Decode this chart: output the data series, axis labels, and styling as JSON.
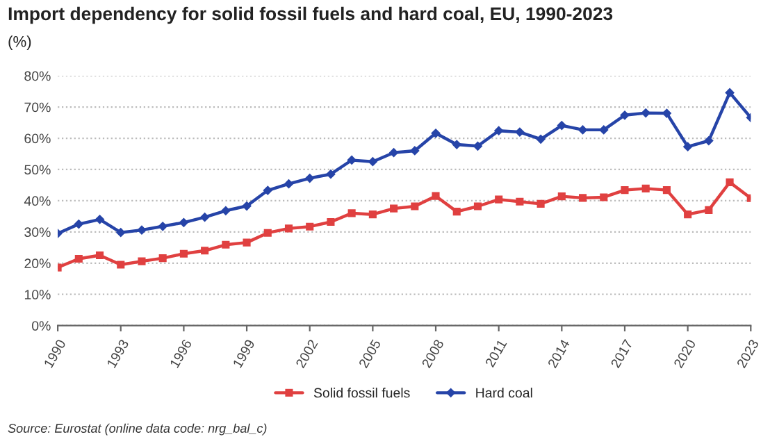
{
  "chart_data": {
    "type": "line",
    "title": "Import dependency for solid fossil fuels and hard coal, EU, 1990-2023",
    "subtitle": "(%)",
    "x": [
      1990,
      1991,
      1992,
      1993,
      1994,
      1995,
      1996,
      1997,
      1998,
      1999,
      2000,
      2001,
      2002,
      2003,
      2004,
      2005,
      2006,
      2007,
      2008,
      2009,
      2010,
      2011,
      2012,
      2013,
      2014,
      2015,
      2016,
      2017,
      2018,
      2019,
      2020,
      2021,
      2022,
      2023
    ],
    "series": [
      {
        "name": "Solid fossil fuels",
        "color": "#e04040",
        "marker": "square",
        "values": [
          18.6,
          21.4,
          22.5,
          19.5,
          20.6,
          21.6,
          23,
          24,
          25.9,
          26.6,
          29.7,
          31.1,
          31.7,
          33.2,
          36,
          35.6,
          37.5,
          38.2,
          41.5,
          36.5,
          38.2,
          40.4,
          39.7,
          39,
          41.4,
          40.9,
          41.1,
          43.4,
          43.9,
          43.4,
          35.6,
          37,
          45.9,
          40.8
        ]
      },
      {
        "name": "Hard coal",
        "color": "#2644a8",
        "marker": "diamond",
        "values": [
          29.5,
          32.5,
          34,
          29.8,
          30.6,
          31.8,
          33,
          34.7,
          36.8,
          38.3,
          43.3,
          45.4,
          47.2,
          48.5,
          53,
          52.5,
          55.4,
          56,
          61.6,
          58,
          57.5,
          62.4,
          62,
          59.7,
          64.1,
          62.7,
          62.7,
          67.4,
          68.1,
          68,
          57.3,
          59.2,
          74.6,
          66.6
        ]
      }
    ],
    "xlim": [
      1990,
      2023
    ],
    "xticks": [
      1990,
      1993,
      1996,
      1999,
      2002,
      2005,
      2008,
      2011,
      2014,
      2017,
      2020,
      2023
    ],
    "ylim": [
      0,
      80
    ],
    "yticks": [
      {
        "value": 0,
        "label": "0%"
      },
      {
        "value": 10,
        "label": "10%"
      },
      {
        "value": 20,
        "label": "20%"
      },
      {
        "value": 30,
        "label": "30%"
      },
      {
        "value": 40,
        "label": "40%"
      },
      {
        "value": 50,
        "label": "50%"
      },
      {
        "value": 60,
        "label": "60%"
      },
      {
        "value": 70,
        "label": "70%"
      },
      {
        "value": 80,
        "label": "80%"
      }
    ],
    "grid": "y",
    "legend": "bottom",
    "line_style": "solid",
    "annotations": [
      "Source: Eurostat (online data code: nrg_bal_c)"
    ]
  }
}
